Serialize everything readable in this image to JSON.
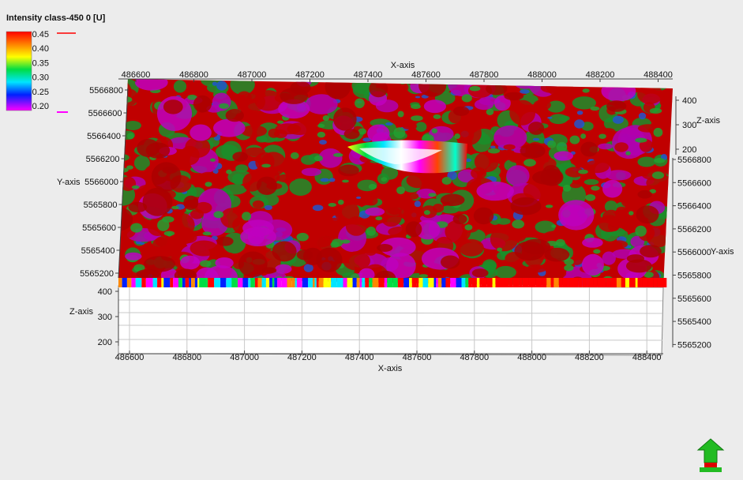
{
  "window": {
    "background": "#ececec"
  },
  "legend": {
    "title": "Intensity class-450 0 [U]",
    "values": [
      "0.45",
      "0.40",
      "0.35",
      "0.30",
      "0.25",
      "0.20"
    ],
    "colors": [
      "#ff0000",
      "#ff8800",
      "#ffff00",
      "#00dd44",
      "#00e5ff",
      "#0020ff",
      "#ff00ff"
    ]
  },
  "chart_data": {
    "type": "heatmap",
    "title": "Intensity class-450 0 [U]",
    "description_type": "3D seismic horizon surface",
    "value_range": [
      0.2,
      0.45
    ],
    "x_axis": {
      "label": "X-axis",
      "ticks": [
        "486600",
        "486800",
        "487000",
        "487200",
        "487400",
        "487600",
        "487800",
        "488000",
        "488200",
        "488400"
      ],
      "range": [
        486550,
        488480
      ]
    },
    "y_axis": {
      "label": "Y-axis",
      "ticks_left": [
        "5566800",
        "5566600",
        "5566400",
        "5566200",
        "5566000",
        "5565800",
        "5565600",
        "5565400",
        "5565200"
      ],
      "ticks_right": [
        "5566800",
        "5566600",
        "5566400",
        "5566200",
        "5566000",
        "5565800",
        "5565600",
        "5565400",
        "5565200"
      ],
      "range": [
        5565200,
        5566850
      ]
    },
    "z_axis": {
      "label": "Z-axis",
      "ticks_top_right": [
        "400",
        "300",
        "200"
      ],
      "ticks_front_left": [
        "400",
        "300",
        "200"
      ],
      "range": [
        200,
        420
      ]
    },
    "grid": true,
    "colormap": [
      "#ff0000",
      "#ff8800",
      "#ffff00",
      "#00dd44",
      "#00e5ff",
      "#0020ff",
      "#ff00ff"
    ],
    "dominant_classes": [
      "red (~0.45)",
      "green (~0.35)",
      "magenta (~0.20)"
    ]
  },
  "navigator": {
    "name": "north-arrow"
  }
}
